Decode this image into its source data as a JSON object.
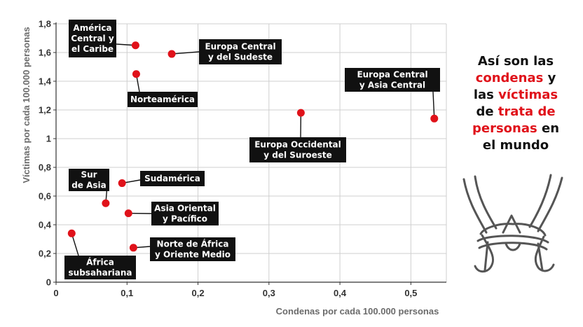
{
  "chart_data": {
    "type": "scatter",
    "xlabel": "Condenas por cada 100.000 personas",
    "ylabel": "Víctimas por cada 100.000 personas",
    "xlim": [
      0,
      0.55
    ],
    "ylim": [
      0,
      1.8
    ],
    "x_ticks": [
      "0",
      "0,1",
      "0,2",
      "0,3",
      "0,4",
      "0,5"
    ],
    "y_ticks": [
      "0",
      "0,2",
      "0,4",
      "0,6",
      "0,8",
      "1",
      "1,2",
      "1,4",
      "1,6",
      "1,8"
    ],
    "grid": true,
    "point_color": "#e0121a",
    "label_color": "#111111",
    "points": [
      {
        "name": "América Central y el Caribe",
        "label_lines": [
          "América",
          "Central y",
          "el Caribe"
        ],
        "x": 0.112,
        "y": 1.65
      },
      {
        "name": "Europa Central y del Sudeste",
        "label_lines": [
          "Europa Central",
          "y del Sudeste"
        ],
        "x": 0.163,
        "y": 1.59
      },
      {
        "name": "Norteamérica",
        "label_lines": [
          "Norteamérica"
        ],
        "x": 0.113,
        "y": 1.45
      },
      {
        "name": "Europa Central y Asia Central",
        "label_lines": [
          "Europa Central",
          "y Asia Central"
        ],
        "x": 0.533,
        "y": 1.14
      },
      {
        "name": "Europa Occidental y del Suroeste",
        "label_lines": [
          "Europa Occidental",
          "y del Suroeste"
        ],
        "x": 0.345,
        "y": 1.18
      },
      {
        "name": "Sudamérica",
        "label_lines": [
          "Sudamérica"
        ],
        "x": 0.093,
        "y": 0.69
      },
      {
        "name": "Sur de Asia",
        "label_lines": [
          "Sur",
          "de Asia"
        ],
        "x": 0.07,
        "y": 0.55
      },
      {
        "name": "Asia Oriental y Pacífico",
        "label_lines": [
          "Asia Oriental",
          "y Pacífico"
        ],
        "x": 0.102,
        "y": 0.48
      },
      {
        "name": "Norte de África y Oriente Medio",
        "label_lines": [
          "Norte de África",
          "y Oriente Medio"
        ],
        "x": 0.109,
        "y": 0.24
      },
      {
        "name": "África subsahariana",
        "label_lines": [
          "África",
          "subsahariana"
        ],
        "x": 0.022,
        "y": 0.34
      }
    ]
  },
  "sidebar": {
    "line1": "Así son las",
    "word_condenas": "condenas",
    "word_y": " y",
    "word_las": "las ",
    "word_victimas": "víctimas",
    "word_de": "de ",
    "word_trata_de": "trata de",
    "word_personas": "personas",
    "word_en": " en",
    "line_last": "el mundo",
    "icon": "tied-hands-icon",
    "accent_color": "#e0121a"
  }
}
